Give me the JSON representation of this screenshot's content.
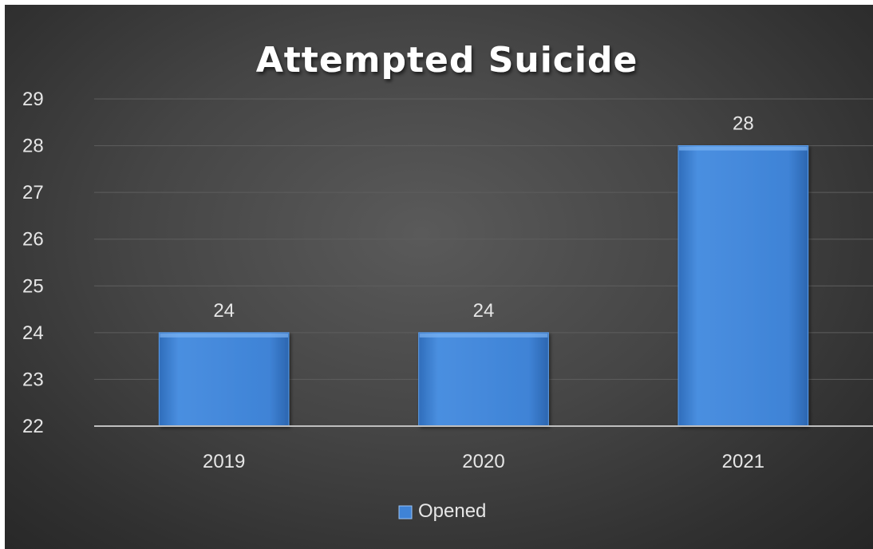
{
  "chart_data": {
    "type": "bar",
    "title": "Attempted Suicide",
    "categories": [
      "2019",
      "2020",
      "2021"
    ],
    "series": [
      {
        "name": "Opened",
        "values": [
          24,
          24,
          28
        ],
        "color": "#3f83d6"
      }
    ],
    "ylim": [
      22,
      29
    ],
    "yticks": [
      22,
      23,
      24,
      25,
      26,
      27,
      28,
      29
    ],
    "xlabel": "",
    "ylabel": "",
    "grid": true,
    "legend": "bottom",
    "data_labels": true
  },
  "colors": {
    "background": "#3a3a3a",
    "bar": "#3f83d6",
    "text": "#e6e6e6",
    "title": "#ffffff"
  }
}
